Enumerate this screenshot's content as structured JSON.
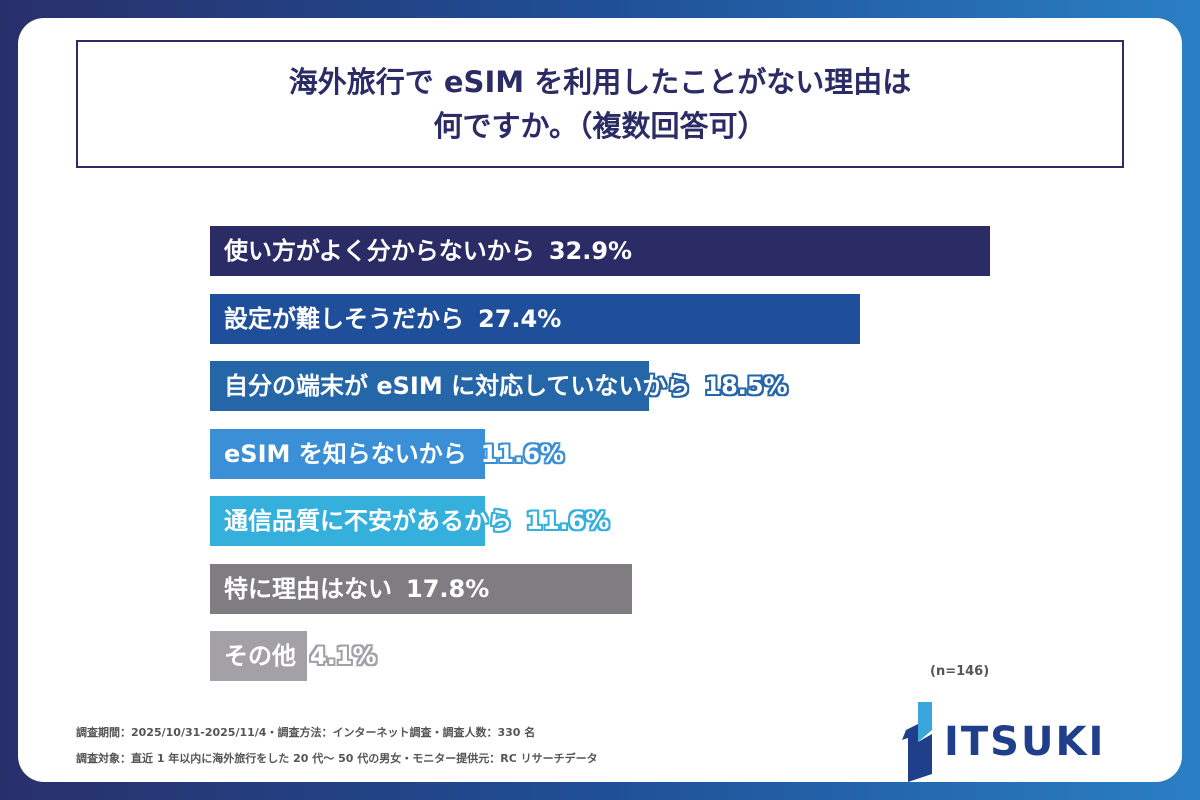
{
  "chart_data": {
    "type": "bar",
    "orientation": "horizontal",
    "title": "海外旅行で eSIM を利用したことがない理由は 何ですか。（複数回答可）",
    "title_lines": [
      "海外旅行で eSIM を利用したことがない理由は",
      "何ですか。（複数回答可）"
    ],
    "categories": [
      "使い方がよく分からないから",
      "設定が難しそうだから",
      "自分の端末が eSIM に対応していないから",
      "eSIM を知らないから",
      "通信品質に不安があるから",
      "特に理由はない",
      "その他"
    ],
    "values": [
      32.9,
      27.4,
      18.5,
      11.6,
      11.6,
      17.8,
      4.1
    ],
    "value_labels": [
      "32.9%",
      "27.4%",
      "18.5%",
      "11.6%",
      "11.6%",
      "17.8%",
      "4.1%"
    ],
    "colors": [
      "#2b2b66",
      "#1f4f9a",
      "#2566a8",
      "#3b8fd6",
      "#35b0dc",
      "#7f7d82",
      "#a3a1a6"
    ],
    "unit": "%",
    "xlim": [
      0,
      35
    ],
    "grid": false
  },
  "sample": "(n=146)",
  "footer": [
    "調査期間：2025/10/31-2025/11/4・調査方法：インターネット調査・調査人数：330 名",
    "調査対象：直近 1 年以内に海外旅行をした 20 代～ 50 代の男女・モニター提供元：RC リサーチデータ"
  ],
  "logo": "ITSUKI"
}
